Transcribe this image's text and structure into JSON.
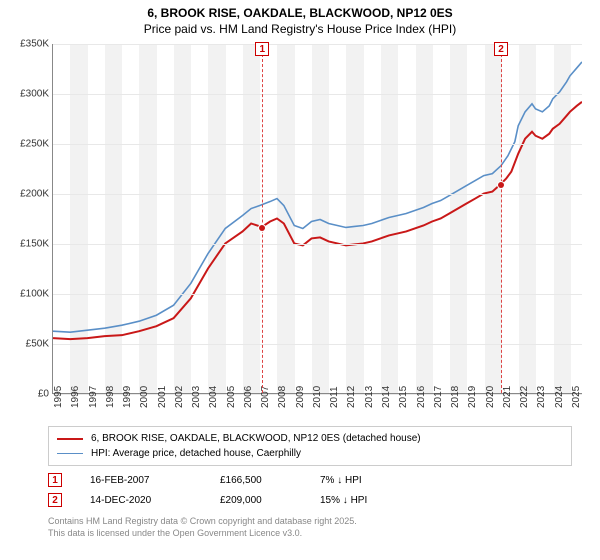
{
  "title": {
    "line1": "6, BROOK RISE, OAKDALE, BLACKWOOD, NP12 0ES",
    "line2": "Price paid vs. HM Land Registry's House Price Index (HPI)"
  },
  "chart": {
    "type": "line",
    "background_color": "#ffffff",
    "plot_shade_color": "#f2f2f2",
    "grid_color": "#e8e8e8",
    "xlim": [
      1995,
      2025.7
    ],
    "ylim": [
      0,
      350000
    ],
    "yticks": [
      0,
      50000,
      100000,
      150000,
      200000,
      250000,
      300000,
      350000
    ],
    "ytick_labels": [
      "£0",
      "£50K",
      "£100K",
      "£150K",
      "£200K",
      "£250K",
      "£300K",
      "£350K"
    ],
    "xticks": [
      1995,
      1996,
      1997,
      1998,
      1999,
      2000,
      2001,
      2002,
      2003,
      2004,
      2005,
      2006,
      2007,
      2008,
      2009,
      2010,
      2011,
      2012,
      2013,
      2014,
      2015,
      2016,
      2017,
      2018,
      2019,
      2020,
      2021,
      2022,
      2023,
      2024,
      2025
    ],
    "label_fontsize": 10,
    "series": [
      {
        "name": "property",
        "color": "#c91818",
        "line_width": 2,
        "data": [
          [
            1995,
            55000
          ],
          [
            1996,
            54000
          ],
          [
            1997,
            55000
          ],
          [
            1998,
            57000
          ],
          [
            1999,
            58000
          ],
          [
            2000,
            62000
          ],
          [
            2001,
            67000
          ],
          [
            2002,
            75000
          ],
          [
            2003,
            95000
          ],
          [
            2004,
            125000
          ],
          [
            2005,
            150000
          ],
          [
            2006,
            162000
          ],
          [
            2006.5,
            170000
          ],
          [
            2007.12,
            166500
          ],
          [
            2007.6,
            172000
          ],
          [
            2008,
            175000
          ],
          [
            2008.4,
            170000
          ],
          [
            2009,
            150000
          ],
          [
            2009.5,
            148000
          ],
          [
            2010,
            155000
          ],
          [
            2010.5,
            156000
          ],
          [
            2011,
            152000
          ],
          [
            2011.5,
            150000
          ],
          [
            2012,
            148000
          ],
          [
            2012.5,
            149000
          ],
          [
            2013,
            150000
          ],
          [
            2013.5,
            152000
          ],
          [
            2014,
            155000
          ],
          [
            2014.5,
            158000
          ],
          [
            2015,
            160000
          ],
          [
            2015.5,
            162000
          ],
          [
            2016,
            165000
          ],
          [
            2016.5,
            168000
          ],
          [
            2017,
            172000
          ],
          [
            2017.5,
            175000
          ],
          [
            2018,
            180000
          ],
          [
            2018.5,
            185000
          ],
          [
            2019,
            190000
          ],
          [
            2019.5,
            195000
          ],
          [
            2020,
            200000
          ],
          [
            2020.5,
            202000
          ],
          [
            2020.95,
            209000
          ],
          [
            2021.3,
            215000
          ],
          [
            2021.6,
            222000
          ],
          [
            2022,
            240000
          ],
          [
            2022.4,
            255000
          ],
          [
            2022.8,
            262000
          ],
          [
            2023,
            258000
          ],
          [
            2023.4,
            255000
          ],
          [
            2023.8,
            260000
          ],
          [
            2024,
            265000
          ],
          [
            2024.4,
            270000
          ],
          [
            2024.8,
            278000
          ],
          [
            2025,
            282000
          ],
          [
            2025.4,
            288000
          ],
          [
            2025.7,
            292000
          ]
        ]
      },
      {
        "name": "hpi",
        "color": "#5a8fc7",
        "line_width": 1.6,
        "data": [
          [
            1995,
            62000
          ],
          [
            1996,
            61000
          ],
          [
            1997,
            63000
          ],
          [
            1998,
            65000
          ],
          [
            1999,
            68000
          ],
          [
            2000,
            72000
          ],
          [
            2001,
            78000
          ],
          [
            2002,
            88000
          ],
          [
            2003,
            110000
          ],
          [
            2004,
            140000
          ],
          [
            2005,
            165000
          ],
          [
            2006,
            178000
          ],
          [
            2006.5,
            185000
          ],
          [
            2007,
            188000
          ],
          [
            2007.6,
            192000
          ],
          [
            2008,
            195000
          ],
          [
            2008.4,
            188000
          ],
          [
            2009,
            168000
          ],
          [
            2009.5,
            165000
          ],
          [
            2010,
            172000
          ],
          [
            2010.5,
            174000
          ],
          [
            2011,
            170000
          ],
          [
            2011.5,
            168000
          ],
          [
            2012,
            166000
          ],
          [
            2012.5,
            167000
          ],
          [
            2013,
            168000
          ],
          [
            2013.5,
            170000
          ],
          [
            2014,
            173000
          ],
          [
            2014.5,
            176000
          ],
          [
            2015,
            178000
          ],
          [
            2015.5,
            180000
          ],
          [
            2016,
            183000
          ],
          [
            2016.5,
            186000
          ],
          [
            2017,
            190000
          ],
          [
            2017.5,
            193000
          ],
          [
            2018,
            198000
          ],
          [
            2018.5,
            203000
          ],
          [
            2019,
            208000
          ],
          [
            2019.5,
            213000
          ],
          [
            2020,
            218000
          ],
          [
            2020.5,
            220000
          ],
          [
            2021,
            228000
          ],
          [
            2021.4,
            238000
          ],
          [
            2021.8,
            252000
          ],
          [
            2022,
            268000
          ],
          [
            2022.4,
            282000
          ],
          [
            2022.8,
            290000
          ],
          [
            2023,
            285000
          ],
          [
            2023.4,
            282000
          ],
          [
            2023.8,
            288000
          ],
          [
            2024,
            295000
          ],
          [
            2024.4,
            302000
          ],
          [
            2024.8,
            312000
          ],
          [
            2025,
            318000
          ],
          [
            2025.4,
            326000
          ],
          [
            2025.7,
            332000
          ]
        ]
      }
    ],
    "markers": [
      {
        "id": "1",
        "x": 2007.12,
        "y": 166500
      },
      {
        "id": "2",
        "x": 2020.95,
        "y": 209000
      }
    ]
  },
  "legend": {
    "items": [
      {
        "color": "#c91818",
        "width": 2,
        "label": "6, BROOK RISE, OAKDALE, BLACKWOOD, NP12 0ES (detached house)"
      },
      {
        "color": "#5a8fc7",
        "width": 1.6,
        "label": "HPI: Average price, detached house, Caerphilly"
      }
    ]
  },
  "sales": [
    {
      "id": "1",
      "date": "16-FEB-2007",
      "price": "£166,500",
      "pct": "7% ↓ HPI"
    },
    {
      "id": "2",
      "date": "14-DEC-2020",
      "price": "£209,000",
      "pct": "15% ↓ HPI"
    }
  ],
  "footer": {
    "line1": "Contains HM Land Registry data © Crown copyright and database right 2025.",
    "line2": "This data is licensed under the Open Government Licence v3.0."
  }
}
